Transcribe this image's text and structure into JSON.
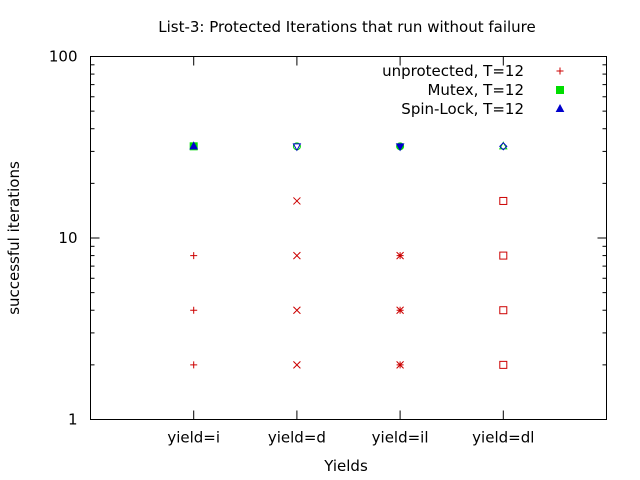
{
  "chart_data": {
    "type": "scatter",
    "title": "List-3: Protected Iterations that run without failure",
    "xlabel": "Yields",
    "ylabel": "successful iterations",
    "y_scale": "log",
    "ylim": [
      1,
      100
    ],
    "y_ticks": [
      {
        "value": 1,
        "label": "1"
      },
      {
        "value": 10,
        "label": "10"
      },
      {
        "value": 100,
        "label": "100"
      }
    ],
    "xlim": [
      -1,
      4
    ],
    "categories": [
      "yield=i",
      "yield=d",
      "yield=il",
      "yield=dl"
    ],
    "legend_position": "top-right",
    "colors": {
      "unprotected": "#cc0000",
      "mutex": "#00dd00",
      "spinlock": "#0000cc",
      "frame": "#000000"
    },
    "series": [
      {
        "name": "unprotected, T=12",
        "color": "#cc0000",
        "points": [
          {
            "x": 0,
            "y": 2,
            "marker": "plus"
          },
          {
            "x": 0,
            "y": 4,
            "marker": "plus"
          },
          {
            "x": 0,
            "y": 8,
            "marker": "plus"
          },
          {
            "x": 1,
            "y": 2,
            "marker": "cross"
          },
          {
            "x": 1,
            "y": 4,
            "marker": "cross"
          },
          {
            "x": 1,
            "y": 8,
            "marker": "cross"
          },
          {
            "x": 1,
            "y": 16,
            "marker": "cross"
          },
          {
            "x": 2,
            "y": 2,
            "marker": "star"
          },
          {
            "x": 2,
            "y": 4,
            "marker": "star"
          },
          {
            "x": 2,
            "y": 8,
            "marker": "star"
          },
          {
            "x": 3,
            "y": 2,
            "marker": "square-open"
          },
          {
            "x": 3,
            "y": 4,
            "marker": "square-open"
          },
          {
            "x": 3,
            "y": 8,
            "marker": "square-open"
          },
          {
            "x": 3,
            "y": 16,
            "marker": "square-open"
          }
        ]
      },
      {
        "name": "Mutex, T=12",
        "color": "#00dd00",
        "points": [
          {
            "x": 0,
            "y": 32,
            "marker": "square-filled"
          },
          {
            "x": 1,
            "y": 32,
            "marker": "circle-open"
          },
          {
            "x": 2,
            "y": 32,
            "marker": "circle-filled"
          },
          {
            "x": 3,
            "y": 32,
            "marker": "triangle-up-open"
          }
        ]
      },
      {
        "name": "Spin-Lock, T=12",
        "color": "#0000cc",
        "points": [
          {
            "x": 0,
            "y": 32,
            "marker": "triangle-up-filled"
          },
          {
            "x": 1,
            "y": 32,
            "marker": "triangle-down-open"
          },
          {
            "x": 2,
            "y": 32,
            "marker": "triangle-down-filled"
          },
          {
            "x": 3,
            "y": 32,
            "marker": "diamond-open"
          }
        ]
      }
    ],
    "legend": [
      {
        "label": "unprotected, T=12",
        "color": "#cc0000",
        "marker": "plus"
      },
      {
        "label": "Mutex, T=12",
        "color": "#00dd00",
        "marker": "square-filled"
      },
      {
        "label": "Spin-Lock, T=12",
        "color": "#0000cc",
        "marker": "triangle-up-filled"
      }
    ]
  }
}
